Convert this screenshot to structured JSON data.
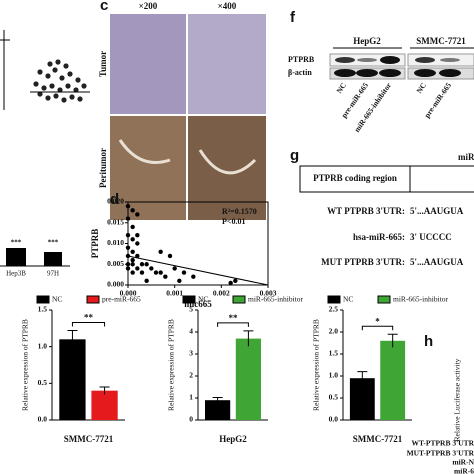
{
  "panels": {
    "labels": [
      "c",
      "d",
      "f",
      "g",
      "h"
    ],
    "c": {
      "columns": [
        "×200",
        "×400"
      ],
      "rows": [
        "Tumor",
        "Peritumor"
      ]
    },
    "f": {
      "groups": [
        {
          "name": "HepG2",
          "lanes": [
            "NC",
            "pre-miR-665",
            "miR-665-inhibitor"
          ]
        },
        {
          "name": "SMMC-7721",
          "lanes": [
            "NC",
            "pre-miR-665"
          ]
        }
      ],
      "rows": [
        "PTPRB",
        "β-actin"
      ]
    },
    "g": {
      "region": "PTPRB coding region",
      "mir": "miR",
      "lines": [
        [
          "WT PTPRB 3'UTR:",
          "5'...AAUGUA"
        ],
        [
          "hsa-miR-665:",
          "3'     UCCCC"
        ],
        [
          "MUT PTPRB 3'UTR:",
          "5'...AAUGUA"
        ]
      ]
    },
    "h": {
      "y_label": "Relative Luciferase activity",
      "rows": [
        "WT-PTPRB 3'UTR",
        "MUT-PTPRB 3'UTR",
        "miR-N",
        "miR-6"
      ]
    },
    "left": {
      "categories": [
        "Hep3B",
        "97H"
      ],
      "marks": [
        "***",
        "***"
      ]
    }
  },
  "chart_data": [
    {
      "type": "scatter",
      "x_label": "mic665",
      "y_label": "PTPRB",
      "annotations": [
        "R²=0.1570",
        "P<0.01"
      ],
      "x": [
        0,
        0.0001,
        0,
        0.0002,
        0.0001,
        0,
        0.0001,
        0.0002,
        0,
        0.0001,
        0,
        0.0002,
        0.0001,
        0,
        0.0001,
        0.0003,
        0,
        0.0002,
        0.0004,
        0.0005,
        0.0001,
        0.0003,
        0.0006,
        0.0007,
        0.0009,
        0.001,
        0.0012,
        0.0011,
        0.0008,
        0.0014,
        0.0004,
        0.0022,
        0.0023,
        0.0002,
        0.0007
      ],
      "y": [
        0.019,
        0.018,
        0.016,
        0.017,
        0.014,
        0.012,
        0.011,
        0.01,
        0.009,
        0.008,
        0.007,
        0.007,
        0.006,
        0.005,
        0.005,
        0.005,
        0.004,
        0.004,
        0.005,
        0.004,
        0.003,
        0.003,
        0.003,
        0.003,
        0.007,
        0.004,
        0.003,
        0.001,
        0.002,
        0.002,
        0.001,
        0.0005,
        0.001,
        0.012,
        0.008
      ],
      "fit": {
        "x": [
          0,
          0.003
        ],
        "y": [
          0.007,
          0
        ]
      },
      "xlim": [
        0,
        0.003
      ],
      "xticks": [
        {
          "value": 0,
          "label": "0.000"
        },
        {
          "value": 0.001,
          "label": "0.001"
        },
        {
          "value": 0.002,
          "label": "0.002"
        },
        {
          "value": 0.003,
          "label": "0.003"
        }
      ],
      "ylim": [
        0,
        0.02
      ],
      "yticks": [
        {
          "value": 0,
          "label": "0.000"
        },
        {
          "value": 0.005,
          "label": "0.005"
        },
        {
          "value": 0.01,
          "label": "0.010"
        },
        {
          "value": 0.015,
          "label": "0.015"
        },
        {
          "value": 0.02,
          "label": "0.020"
        }
      ],
      "color": "#000"
    },
    {
      "type": "bar",
      "y_label": "Relative expression of PTPRB",
      "categories": [
        "SMMC-7721"
      ],
      "significance": "**",
      "series": [
        {
          "name": "NC",
          "color": "#000000",
          "values": [
            1.1
          ],
          "errors": [
            0.12
          ]
        },
        {
          "name": "pre-miR-665",
          "color": "#e41a1c",
          "values": [
            0.4
          ],
          "errors": [
            0.05
          ]
        }
      ],
      "ylim": [
        0,
        1.5
      ],
      "yticks": [
        {
          "value": 0,
          "label": "0.0"
        },
        {
          "value": 0.5,
          "label": "0.5"
        },
        {
          "value": 1,
          "label": "1.0"
        },
        {
          "value": 1.5,
          "label": "1.5"
        }
      ]
    },
    {
      "type": "bar",
      "y_label": "Relative expression of PTPRB",
      "categories": [
        "HepG2"
      ],
      "significance": "**",
      "series": [
        {
          "name": "NC",
          "color": "#000000",
          "values": [
            0.9
          ],
          "errors": [
            0.12
          ]
        },
        {
          "name": "miR-665-inhibitor",
          "color": "#3fa535",
          "values": [
            3.7
          ],
          "errors": [
            0.35
          ]
        }
      ],
      "ylim": [
        0,
        5
      ],
      "yticks": [
        0,
        1,
        2,
        3,
        4,
        5
      ]
    },
    {
      "type": "bar",
      "y_label": "Relative expression of PTPRB",
      "categories": [
        "SMMC-7721"
      ],
      "significance": "*",
      "series": [
        {
          "name": "NC",
          "color": "#000000",
          "values": [
            0.95
          ],
          "errors": [
            0.15
          ]
        },
        {
          "name": "miR-665-inhibitor",
          "color": "#3fa535",
          "values": [
            1.8
          ],
          "errors": [
            0.15
          ]
        }
      ],
      "ylim": [
        0,
        2.5
      ],
      "yticks": [
        {
          "value": 0,
          "label": "0.0"
        },
        {
          "value": 0.5,
          "label": "0.5"
        },
        {
          "value": 1,
          "label": "1.0"
        },
        {
          "value": 1.5,
          "label": "1.5"
        },
        {
          "value": 2,
          "label": "2.0"
        },
        {
          "value": 2.5,
          "label": "2.5"
        }
      ]
    }
  ]
}
